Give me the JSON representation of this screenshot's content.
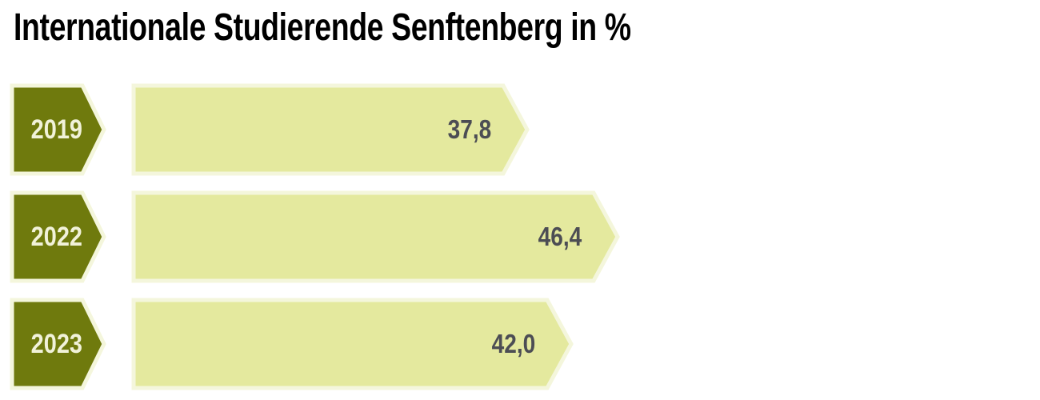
{
  "chart_data": {
    "type": "bar",
    "orientation": "horizontal",
    "title": "Internationale Studierende Senftenberg in %",
    "categories": [
      "2019",
      "2022",
      "2023"
    ],
    "values": [
      37.8,
      46.4,
      42.0
    ],
    "value_labels": [
      "37,8",
      "46,4",
      "42,0"
    ],
    "unit": "%",
    "grid": false,
    "legend": "none",
    "colors": {
      "year_tag_fill": "#6f7a0d",
      "bar_fill": "#e4e99e",
      "shape_outline": "#f4f6dc",
      "year_text": "#f1f2d9",
      "value_text": "#4c4d54",
      "title_text": "#000000",
      "background": "#ffffff"
    }
  }
}
